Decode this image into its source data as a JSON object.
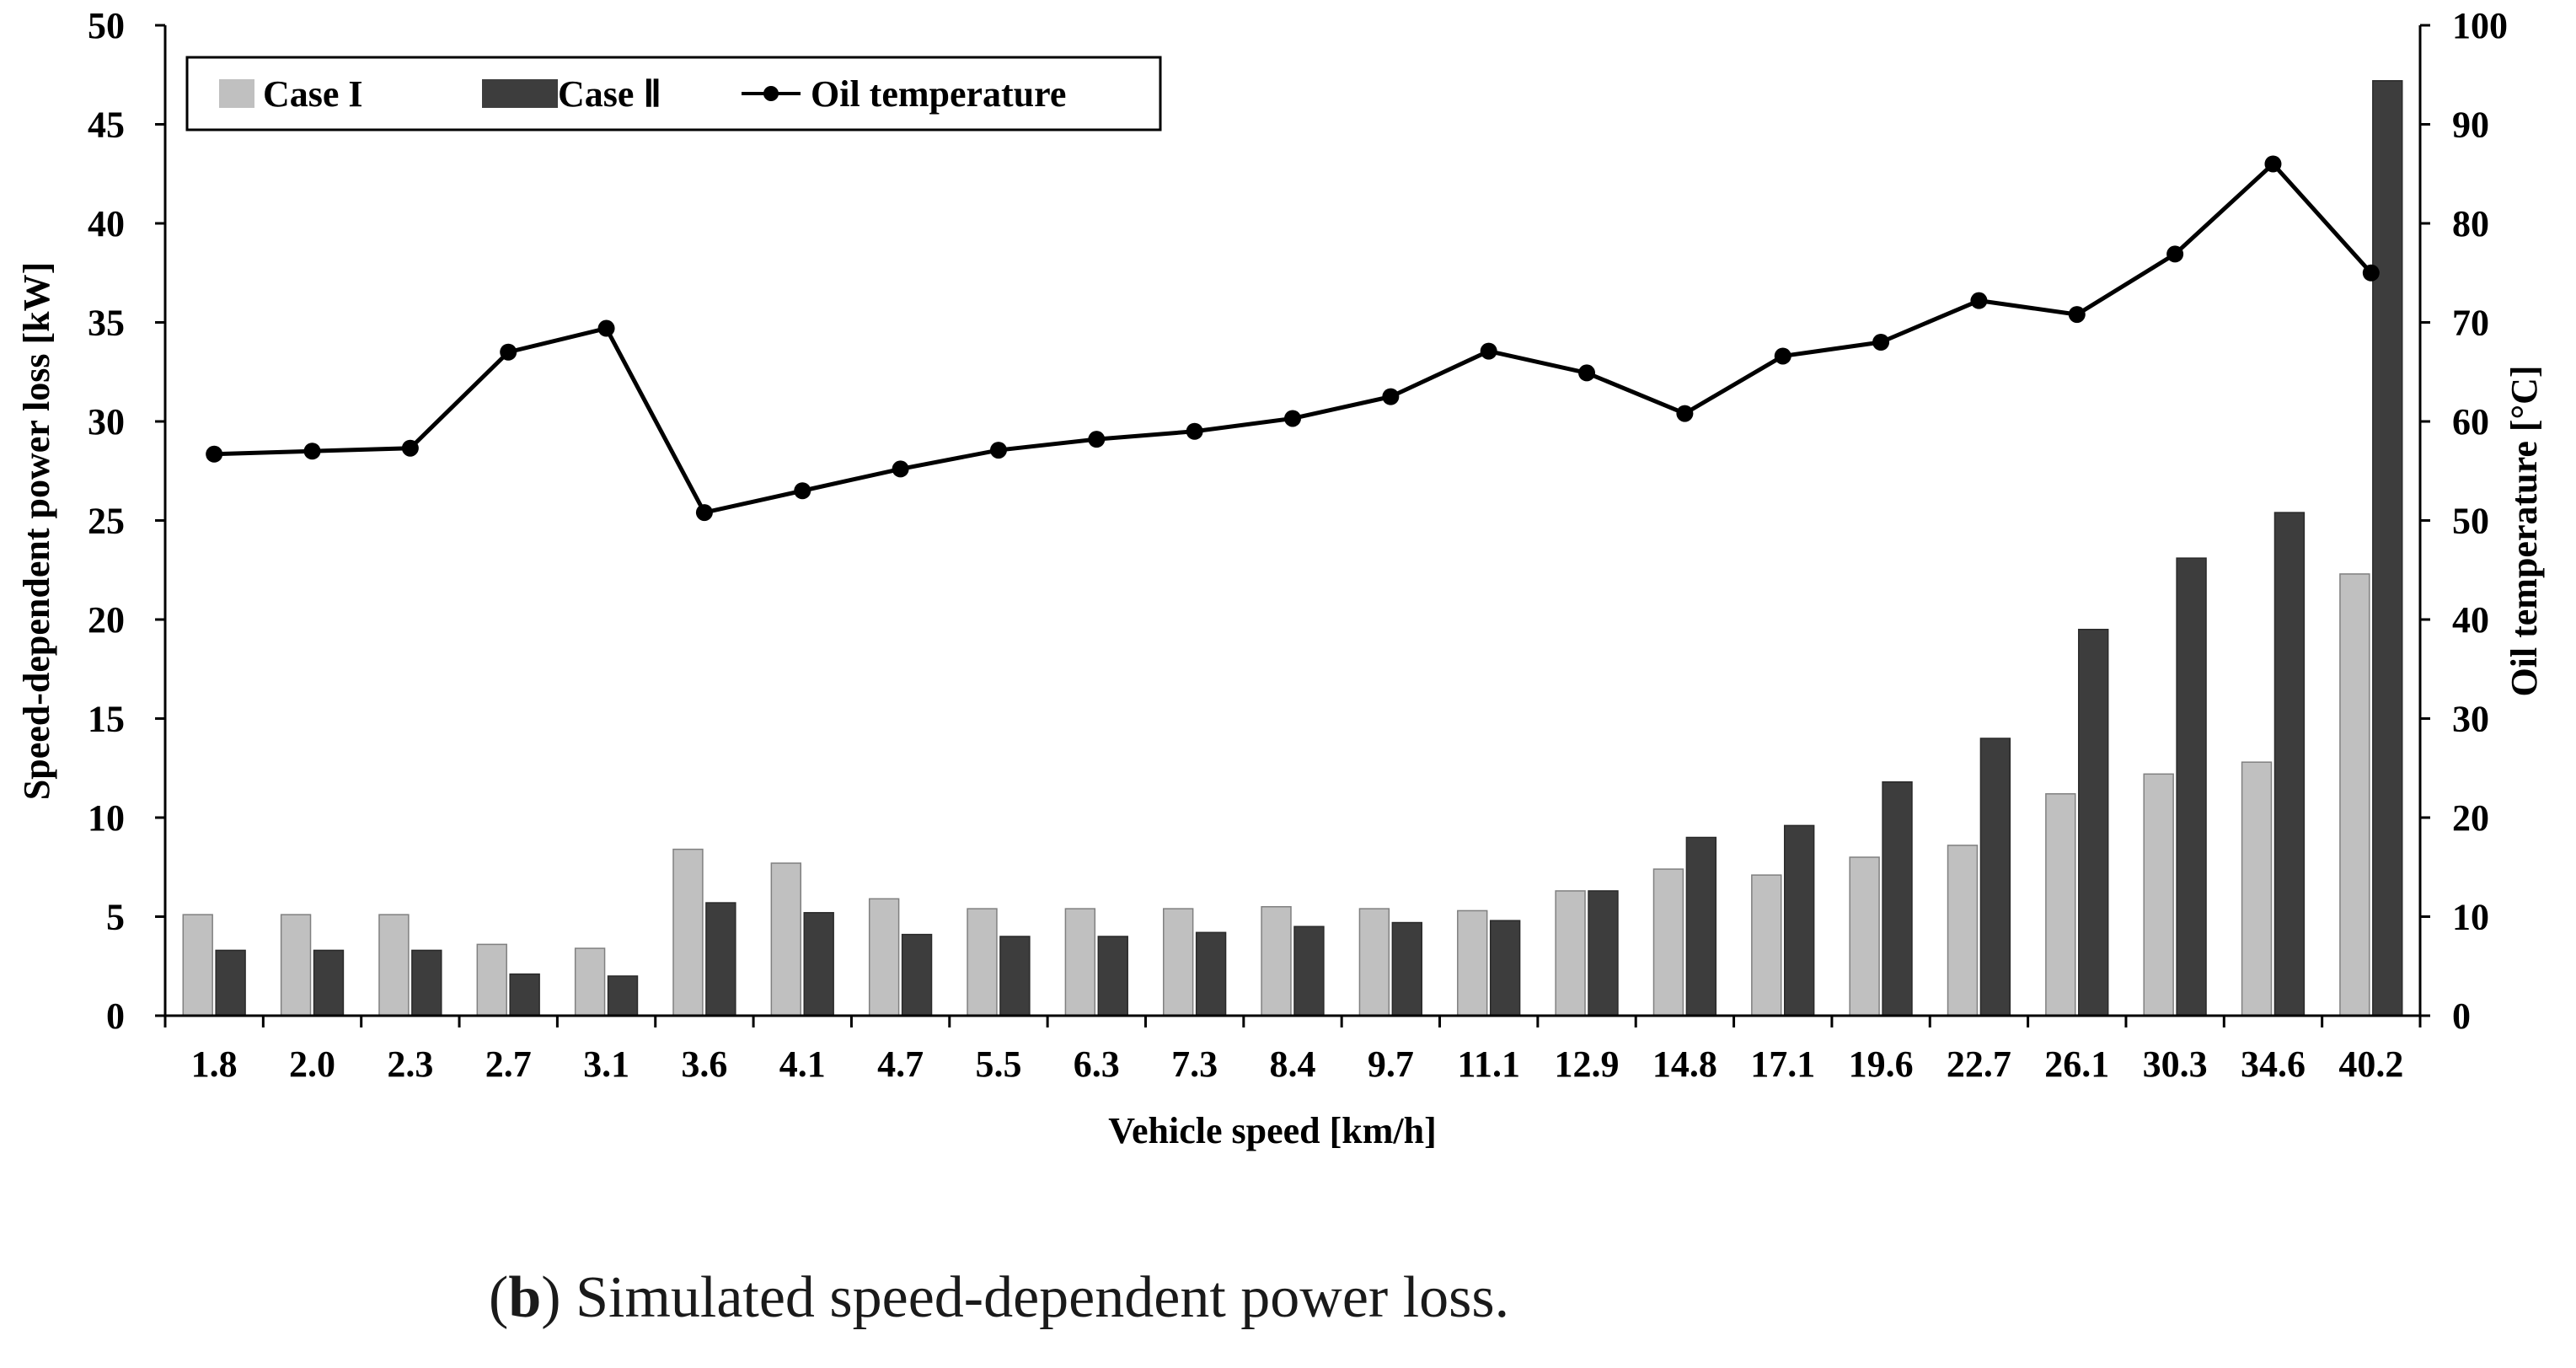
{
  "chart_data": {
    "type": "bar",
    "xlabel": "Vehicle speed [km/h]",
    "ylabel": "Speed-dependent power loss [kW]",
    "y2label": "Oil temperature [°C]",
    "categories": [
      "1.8",
      "2.0",
      "2.3",
      "2.7",
      "3.1",
      "3.6",
      "4.1",
      "4.7",
      "5.5",
      "6.3",
      "7.3",
      "8.4",
      "9.7",
      "11.1",
      "12.9",
      "14.8",
      "17.1",
      "19.6",
      "22.7",
      "26.1",
      "30.3",
      "34.6",
      "40.2"
    ],
    "ylim": [
      0,
      50
    ],
    "yticks": [
      0,
      5,
      10,
      15,
      20,
      25,
      30,
      35,
      40,
      45,
      50
    ],
    "y2lim": [
      0,
      100
    ],
    "y2ticks": [
      0,
      10,
      20,
      30,
      40,
      50,
      60,
      70,
      80,
      90,
      100
    ],
    "series": [
      {
        "name": "Case I",
        "type": "bar",
        "axis": "left",
        "color": "#c0c0c0",
        "values": [
          5.1,
          5.1,
          5.1,
          3.6,
          3.4,
          8.4,
          7.7,
          5.9,
          5.4,
          5.4,
          5.4,
          5.5,
          5.4,
          5.3,
          6.3,
          7.4,
          7.1,
          8.0,
          8.6,
          11.2,
          12.2,
          12.8,
          22.3
        ]
      },
      {
        "name": "Case Ⅱ",
        "type": "bar",
        "axis": "left",
        "color": "#3d3d3d",
        "values": [
          3.3,
          3.3,
          3.3,
          2.1,
          2.0,
          5.7,
          5.2,
          4.1,
          4.0,
          4.0,
          4.2,
          4.5,
          4.7,
          4.8,
          6.3,
          9.0,
          9.6,
          11.8,
          14.0,
          19.5,
          23.1,
          25.4,
          47.2
        ]
      },
      {
        "name": "Oil temperature",
        "type": "line",
        "axis": "right",
        "color": "#000000",
        "values": [
          56.7,
          57.0,
          57.3,
          67.0,
          69.4,
          50.8,
          53.0,
          55.2,
          57.1,
          58.2,
          59.0,
          60.3,
          62.5,
          67.1,
          64.9,
          60.8,
          66.6,
          68.0,
          72.2,
          70.8,
          76.9,
          86.0,
          75.0
        ]
      }
    ],
    "legend": "top-left"
  },
  "caption": {
    "label": "b",
    "text": "Simulated speed-dependent power loss."
  }
}
